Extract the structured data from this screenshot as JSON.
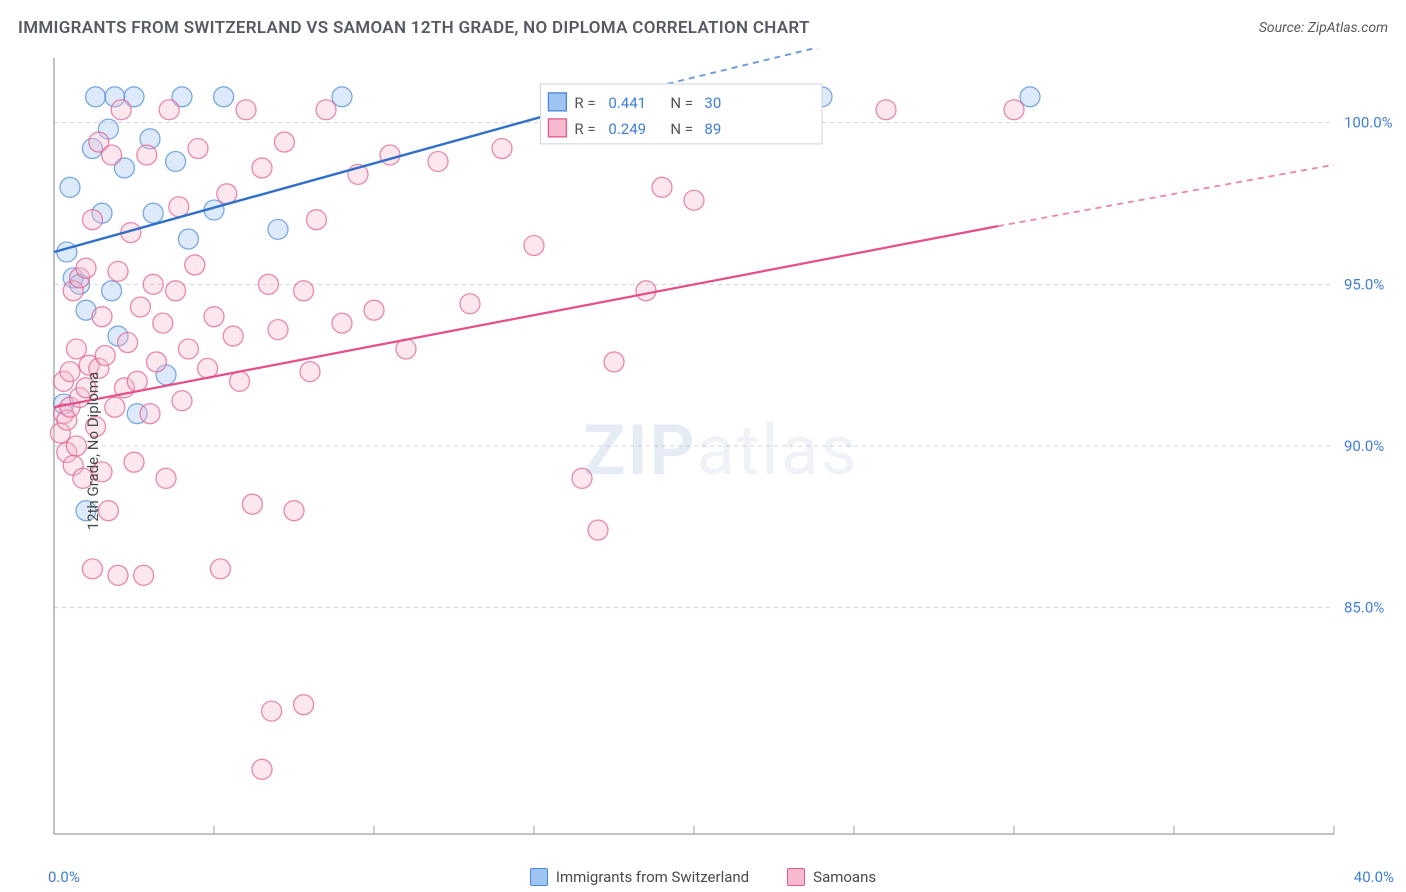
{
  "title": "IMMIGRANTS FROM SWITZERLAND VS SAMOAN 12TH GRADE, NO DIPLOMA CORRELATION CHART",
  "source_label": "Source: ",
  "source_name": "ZipAtlas.com",
  "ylabel": "12th Grade, No Diploma",
  "watermark_a": "ZIP",
  "watermark_b": "atlas",
  "chart": {
    "type": "scatter",
    "xlim": [
      0,
      40
    ],
    "ylim": [
      78,
      102
    ],
    "x_tick_labels": [
      "0.0%",
      "40.0%"
    ],
    "y_grid": [
      85,
      90,
      95,
      100
    ],
    "y_grid_labels": [
      "85.0%",
      "90.0%",
      "95.0%",
      "100.0%"
    ],
    "x_grid": [
      0,
      5,
      10,
      15,
      20,
      25,
      30,
      35,
      40
    ],
    "marker_radius": 10,
    "marker_opacity": 0.35,
    "background_color": "#ffffff",
    "grid_color": "#cfd3da",
    "axis_color": "#9aa0aa",
    "y_tick_color": "#3f7ed6",
    "x_tick_color": "#3f7ed6",
    "series": [
      {
        "key": "swiss",
        "label": "Immigrants from Switzerland",
        "color_fill": "#9ec4f3",
        "color_stroke": "#4a88d6",
        "line_color": "#2f6fc9",
        "line_width": 2.4,
        "R_label": "R =",
        "R": "0.441",
        "N_label": "N =",
        "N": "30",
        "trend": {
          "x1": 0,
          "y1": 96.0,
          "x2": 17.5,
          "y2": 100.8,
          "x2_ext": 40,
          "y2_ext": 106.2
        },
        "points": [
          [
            0.3,
            91.3
          ],
          [
            0.4,
            96.0
          ],
          [
            0.5,
            98.0
          ],
          [
            0.6,
            95.2
          ],
          [
            0.8,
            95.0
          ],
          [
            1.0,
            94.2
          ],
          [
            1.0,
            88.0
          ],
          [
            1.2,
            99.2
          ],
          [
            1.3,
            100.8
          ],
          [
            1.5,
            97.2
          ],
          [
            1.7,
            99.8
          ],
          [
            1.8,
            94.8
          ],
          [
            1.9,
            100.8
          ],
          [
            2.0,
            93.4
          ],
          [
            2.2,
            98.6
          ],
          [
            2.5,
            100.8
          ],
          [
            2.6,
            91.0
          ],
          [
            3.0,
            99.5
          ],
          [
            3.1,
            97.2
          ],
          [
            3.5,
            92.2
          ],
          [
            3.8,
            98.8
          ],
          [
            4.0,
            100.8
          ],
          [
            4.2,
            96.4
          ],
          [
            5.0,
            97.3
          ],
          [
            5.3,
            100.8
          ],
          [
            7.0,
            96.7
          ],
          [
            9.0,
            100.8
          ],
          [
            22.5,
            100.8
          ],
          [
            24.0,
            100.8
          ],
          [
            30.5,
            100.8
          ]
        ]
      },
      {
        "key": "samoan",
        "label": "Samoans",
        "color_fill": "#f6b9cf",
        "color_stroke": "#e05a8c",
        "line_color": "#e64d89",
        "line_width": 2.2,
        "R_label": "R =",
        "R": "0.249",
        "N_label": "N =",
        "N": "89",
        "trend": {
          "x1": 0,
          "y1": 91.2,
          "x2": 29.5,
          "y2": 96.8,
          "x2_ext": 40,
          "y2_ext": 98.7
        },
        "points": [
          [
            0.2,
            90.4
          ],
          [
            0.3,
            92.0
          ],
          [
            0.3,
            91.0
          ],
          [
            0.4,
            89.8
          ],
          [
            0.4,
            90.8
          ],
          [
            0.5,
            91.2
          ],
          [
            0.5,
            92.3
          ],
          [
            0.6,
            89.4
          ],
          [
            0.6,
            94.8
          ],
          [
            0.7,
            90.0
          ],
          [
            0.7,
            93.0
          ],
          [
            0.8,
            91.5
          ],
          [
            0.8,
            95.2
          ],
          [
            0.9,
            89.0
          ],
          [
            1.0,
            91.8
          ],
          [
            1.0,
            95.5
          ],
          [
            1.1,
            92.5
          ],
          [
            1.2,
            86.2
          ],
          [
            1.2,
            97.0
          ],
          [
            1.3,
            90.6
          ],
          [
            1.4,
            92.4
          ],
          [
            1.4,
            99.4
          ],
          [
            1.5,
            89.2
          ],
          [
            1.5,
            94.0
          ],
          [
            1.6,
            92.8
          ],
          [
            1.7,
            88.0
          ],
          [
            1.8,
            99.0
          ],
          [
            1.9,
            91.2
          ],
          [
            2.0,
            86.0
          ],
          [
            2.0,
            95.4
          ],
          [
            2.1,
            100.4
          ],
          [
            2.2,
            91.8
          ],
          [
            2.3,
            93.2
          ],
          [
            2.4,
            96.6
          ],
          [
            2.5,
            89.5
          ],
          [
            2.6,
            92.0
          ],
          [
            2.7,
            94.3
          ],
          [
            2.8,
            86.0
          ],
          [
            2.9,
            99.0
          ],
          [
            3.0,
            91.0
          ],
          [
            3.1,
            95.0
          ],
          [
            3.2,
            92.6
          ],
          [
            3.4,
            93.8
          ],
          [
            3.5,
            89.0
          ],
          [
            3.6,
            100.4
          ],
          [
            3.8,
            94.8
          ],
          [
            3.9,
            97.4
          ],
          [
            4.0,
            91.4
          ],
          [
            4.2,
            93.0
          ],
          [
            4.4,
            95.6
          ],
          [
            4.5,
            99.2
          ],
          [
            4.8,
            92.4
          ],
          [
            5.0,
            94.0
          ],
          [
            5.2,
            86.2
          ],
          [
            5.4,
            97.8
          ],
          [
            5.6,
            93.4
          ],
          [
            5.8,
            92.0
          ],
          [
            6.0,
            100.4
          ],
          [
            6.2,
            88.2
          ],
          [
            6.5,
            98.6
          ],
          [
            6.5,
            80.0
          ],
          [
            6.7,
            95.0
          ],
          [
            6.8,
            81.8
          ],
          [
            7.0,
            93.6
          ],
          [
            7.2,
            99.4
          ],
          [
            7.5,
            88.0
          ],
          [
            7.8,
            94.8
          ],
          [
            7.8,
            82.0
          ],
          [
            8.0,
            92.3
          ],
          [
            8.2,
            97.0
          ],
          [
            8.5,
            100.4
          ],
          [
            9.0,
            93.8
          ],
          [
            9.5,
            98.4
          ],
          [
            10.0,
            94.2
          ],
          [
            10.5,
            99.0
          ],
          [
            11.0,
            93.0
          ],
          [
            12.0,
            98.8
          ],
          [
            13.0,
            94.4
          ],
          [
            14.0,
            99.2
          ],
          [
            15.0,
            96.2
          ],
          [
            16.5,
            89.0
          ],
          [
            17.0,
            87.4
          ],
          [
            17.5,
            92.6
          ],
          [
            18.5,
            94.8
          ],
          [
            19.0,
            98.0
          ],
          [
            20.0,
            97.6
          ],
          [
            21.5,
            100.4
          ],
          [
            26.0,
            100.4
          ],
          [
            30.0,
            100.4
          ]
        ]
      }
    ],
    "legend_box": {
      "x": 15.2,
      "y_top": 101.2,
      "width_pct": 8.8,
      "row_height": 1.8,
      "border_color": "#cfd3da",
      "bg": "#ffffff"
    }
  }
}
